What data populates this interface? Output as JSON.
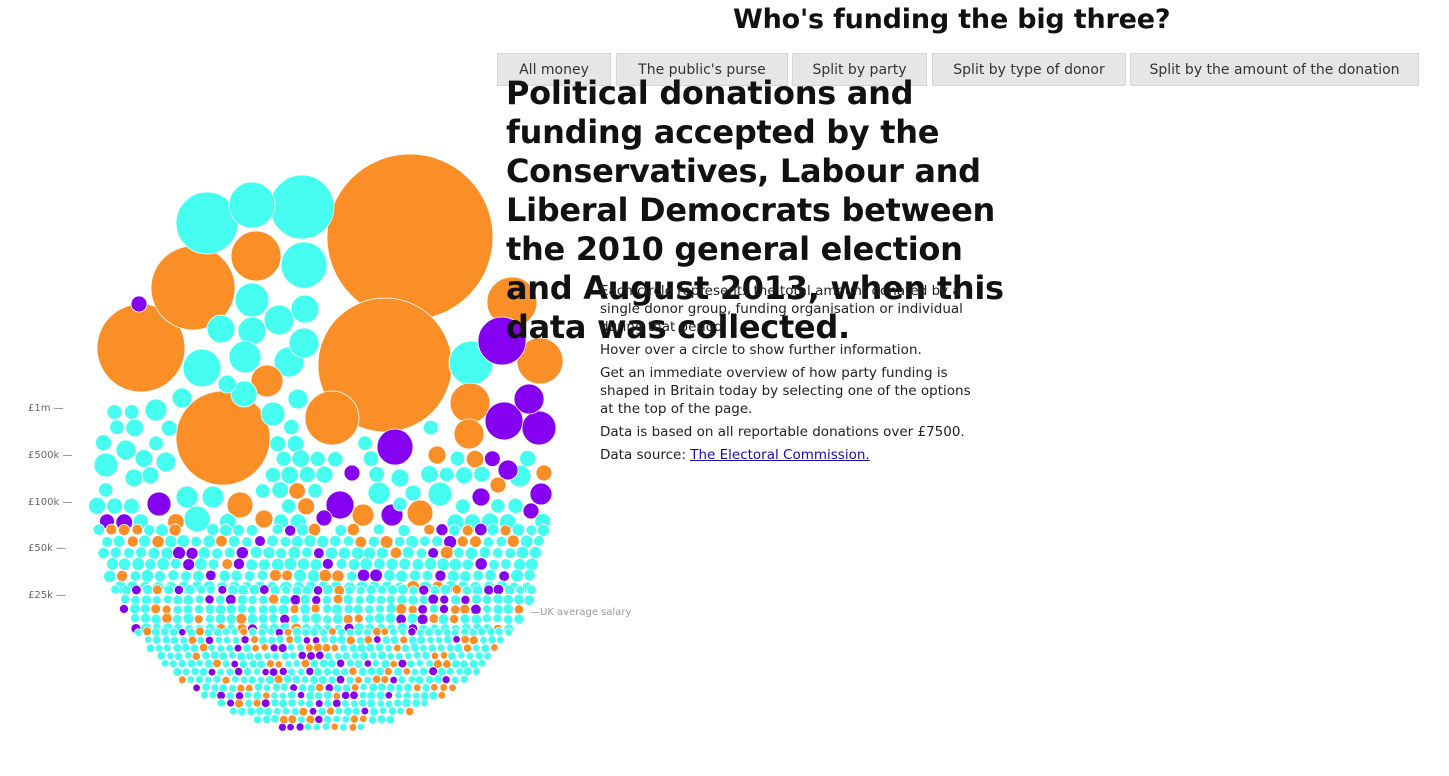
{
  "page": {
    "title": "Who's funding the big three?",
    "headline": "Political donations and funding accepted by the Conservatives, Labour and Liberal Democrats between the 2010 general election and August 2013, when this data was collected."
  },
  "tabs": [
    {
      "label": "All money",
      "active": true
    },
    {
      "label": "The public's purse",
      "active": false
    },
    {
      "label": "Split by party",
      "active": false
    },
    {
      "label": "Split by type of donor",
      "active": false
    },
    {
      "label": "Split by the amount of the donation",
      "active": false
    }
  ],
  "intro": {
    "p1": "Each circle represents the total amount donated by a single donor group, funding organisation or individual during that period.",
    "p2": "Hover over a circle to show further information.",
    "p3": "Get an immediate overview of how party funding is shaped in Britain today by selecting one of the options at the top of the page.",
    "p4": "Data is based on all reportable donations over £7500.",
    "source_prefix": "Data source: ",
    "source_link": "The Electoral Commission."
  },
  "chart": {
    "scale_labels": [
      "£1m —",
      "£500k —",
      "£100k —",
      "£50k —",
      "£25k —"
    ],
    "salary_marker": "—UK average salary"
  },
  "colors": {
    "conservative": "#45fef0",
    "labour": "#f98f26",
    "libdem": "#8500f0"
  },
  "chart_data": {
    "type": "bubble",
    "series": [
      {
        "name": "Conservatives",
        "color": "#45fef0"
      },
      {
        "name": "Labour",
        "color": "#f98f26"
      },
      {
        "name": "Liberal Democrats",
        "color": "#8500f0"
      }
    ],
    "scale_ticks": [
      "£1m",
      "£500k",
      "£100k",
      "£50k",
      "£25k"
    ],
    "reference_line": "UK average salary"
  }
}
